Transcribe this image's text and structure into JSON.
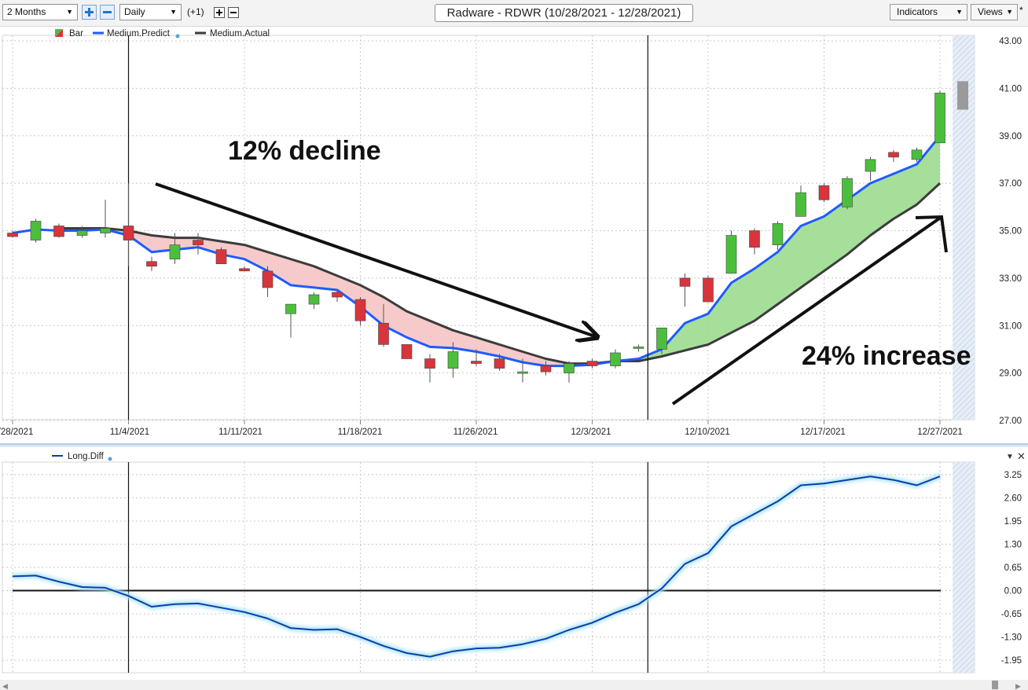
{
  "toolbar": {
    "period_select": "2 Months",
    "interval_select": "Daily",
    "offset_label": "(+1)",
    "title": "Radware - RDWR (10/28/2021 - 12/28/2021)",
    "indicators_button": "Indicators",
    "views_button": "Views",
    "star_label": "*"
  },
  "colors": {
    "up": "#4bbf3c",
    "down": "#d9343b",
    "predict_line": "#1f5bff",
    "actual_line": "#3c3c3c",
    "bull_fill": "#9bdc8f",
    "bear_fill": "#f5c4c4",
    "diff_line": "#0a3fa8",
    "diff_glow": "#aee4f7"
  },
  "legend": {
    "bar": "Bar",
    "predict": "Medium.Predict",
    "actual": "Medium.Actual",
    "lower": "Long.Diff"
  },
  "annotations": {
    "decline_text": "12% decline",
    "increase_text": "24% increase"
  },
  "chart_data": [
    {
      "type": "candlestick",
      "title": "Radware - RDWR (10/28/2021 - 12/28/2021)",
      "ylim": [
        27,
        43
      ],
      "y_ticks": [
        "43.00",
        "41.00",
        "39.00",
        "37.00",
        "35.00",
        "33.00",
        "31.00",
        "29.00",
        "27.00"
      ],
      "x_tick_labels": [
        "/28/2021",
        "11/4/2021",
        "11/11/2021",
        "11/18/2021",
        "11/26/2021",
        "12/3/2021",
        "12/10/2021",
        "12/17/2021",
        "12/27/2021"
      ],
      "x_tick_index": [
        0,
        5,
        10,
        15,
        20,
        25,
        30,
        35,
        40
      ],
      "x_tick_pos": [
        20,
        165,
        306,
        458,
        605,
        752,
        900,
        1047,
        1196
      ],
      "vertical_markers_index": [
        5,
        27.4
      ],
      "candles": [
        [
          34.9,
          35.0,
          34.7,
          34.75
        ],
        [
          34.6,
          35.5,
          34.5,
          35.4
        ],
        [
          35.2,
          35.3,
          34.7,
          34.75
        ],
        [
          34.8,
          35.2,
          34.7,
          35.0
        ],
        [
          34.9,
          36.3,
          34.7,
          35.1
        ],
        [
          35.2,
          37.0,
          33.5,
          34.6
        ],
        [
          33.7,
          33.9,
          33.3,
          33.5
        ],
        [
          33.8,
          34.9,
          33.6,
          34.4
        ],
        [
          34.6,
          34.9,
          34.0,
          34.4
        ],
        [
          34.2,
          34.3,
          33.6,
          33.6
        ],
        [
          33.4,
          33.5,
          33.3,
          33.3
        ],
        [
          33.3,
          33.5,
          32.2,
          32.6
        ],
        [
          31.5,
          31.9,
          30.5,
          31.9
        ],
        [
          31.9,
          32.4,
          31.7,
          32.3
        ],
        [
          32.4,
          32.5,
          32.0,
          32.2
        ],
        [
          32.1,
          32.2,
          31.0,
          31.2
        ],
        [
          31.1,
          31.9,
          30.1,
          30.2
        ],
        [
          30.2,
          30.2,
          29.6,
          29.6
        ],
        [
          29.6,
          29.8,
          28.6,
          29.2
        ],
        [
          29.2,
          30.3,
          28.8,
          29.9
        ],
        [
          29.5,
          30.0,
          29.3,
          29.4
        ],
        [
          29.6,
          29.8,
          29.1,
          29.2
        ],
        [
          29.0,
          29.6,
          28.6,
          29.05
        ],
        [
          29.3,
          29.5,
          28.9,
          29.05
        ],
        [
          29.0,
          29.5,
          28.6,
          29.4
        ],
        [
          29.5,
          29.6,
          29.2,
          29.3
        ],
        [
          29.3,
          30.0,
          29.2,
          29.85
        ],
        [
          30.1,
          30.2,
          29.9,
          30.1
        ],
        [
          30.0,
          30.9,
          29.8,
          30.9
        ],
        [
          33.0,
          33.2,
          31.8,
          32.65
        ],
        [
          33.0,
          33.1,
          32.0,
          32.0
        ],
        [
          33.2,
          35.0,
          33.2,
          34.8
        ],
        [
          35.0,
          35.1,
          34.0,
          34.3
        ],
        [
          34.4,
          35.4,
          34.2,
          35.3
        ],
        [
          35.6,
          36.9,
          35.6,
          36.6
        ],
        [
          36.9,
          37.0,
          36.2,
          36.3
        ],
        [
          36.0,
          37.3,
          35.9,
          37.2
        ],
        [
          37.5,
          38.1,
          37.1,
          38.0
        ],
        [
          38.3,
          38.4,
          37.9,
          38.1
        ],
        [
          38.0,
          38.5,
          37.9,
          38.4
        ],
        [
          38.7,
          40.9,
          38.7,
          40.8
        ]
      ],
      "forecast_bar": [
        40.1,
        41.3
      ],
      "series": [
        {
          "name": "Medium.Predict",
          "values": [
            34.9,
            35.05,
            35.0,
            35.0,
            35.05,
            34.8,
            34.1,
            34.2,
            34.3,
            34.0,
            33.8,
            33.3,
            32.7,
            32.6,
            32.5,
            31.8,
            31.0,
            30.5,
            30.1,
            30.05,
            29.9,
            29.7,
            29.45,
            29.3,
            29.3,
            29.35,
            29.5,
            29.6,
            30.0,
            31.1,
            31.5,
            32.8,
            33.4,
            34.1,
            35.2,
            35.6,
            36.3,
            37.0,
            37.4,
            37.8,
            39.0
          ]
        },
        {
          "name": "Medium.Actual",
          "values": [
            null,
            null,
            35.1,
            35.1,
            35.1,
            35.0,
            34.8,
            34.7,
            34.7,
            34.55,
            34.4,
            34.1,
            33.8,
            33.5,
            33.1,
            32.7,
            32.2,
            31.6,
            31.2,
            30.8,
            30.5,
            30.2,
            29.9,
            29.6,
            29.4,
            29.4,
            29.5,
            29.5,
            29.7,
            29.95,
            30.2,
            30.7,
            31.2,
            31.9,
            32.6,
            33.3,
            34.0,
            34.8,
            35.5,
            36.1,
            37.0
          ]
        }
      ]
    },
    {
      "type": "line",
      "ylim": [
        -2.3,
        3.6
      ],
      "y_ticks": [
        "3.25",
        "2.60",
        "1.95",
        "1.30",
        "0.65",
        "0.00",
        "-0.65",
        "-1.30",
        "-1.95"
      ],
      "series": [
        {
          "name": "Long.Diff",
          "values": [
            0.4,
            0.42,
            0.25,
            0.1,
            0.08,
            -0.15,
            -0.45,
            -0.38,
            -0.36,
            -0.48,
            -0.6,
            -0.78,
            -1.05,
            -1.1,
            -1.08,
            -1.3,
            -1.55,
            -1.75,
            -1.85,
            -1.7,
            -1.62,
            -1.6,
            -1.5,
            -1.35,
            -1.1,
            -0.9,
            -0.62,
            -0.38,
            0.06,
            0.75,
            1.05,
            1.8,
            2.15,
            2.5,
            2.95,
            3.0,
            3.1,
            3.2,
            3.1,
            2.95,
            3.2
          ]
        }
      ]
    }
  ]
}
